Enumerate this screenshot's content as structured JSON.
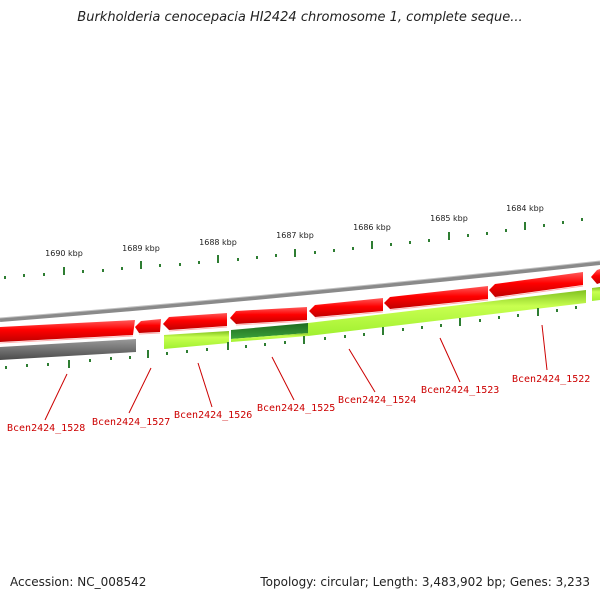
{
  "title": "Burkholderia cenocepacia HI2424 chromosome 1, complete seque...",
  "footer": {
    "accession": "Accession: NC_008542",
    "stats": "Topology: circular; Length: 3,483,902 bp; Genes: 3,233"
  },
  "kbp_labels": [
    "1690 kbp",
    "1689 kbp",
    "1688 kbp",
    "1687 kbp",
    "1686 kbp",
    "1685 kbp",
    "1684 kbp"
  ],
  "gene_labels": [
    "Bcen2424_1528",
    "Bcen2424_1527",
    "Bcen2424_1526",
    "Bcen2424_1525",
    "Bcen2424_1524",
    "Bcen2424_1523",
    "Bcen2424_1522"
  ],
  "colors": {
    "cds": "#ff1a1a",
    "blast": "#aaff33",
    "blast_dark": "#2e8b2e",
    "gray": "#666666",
    "tick": "#2e7d32",
    "label": "#cc0000"
  }
}
